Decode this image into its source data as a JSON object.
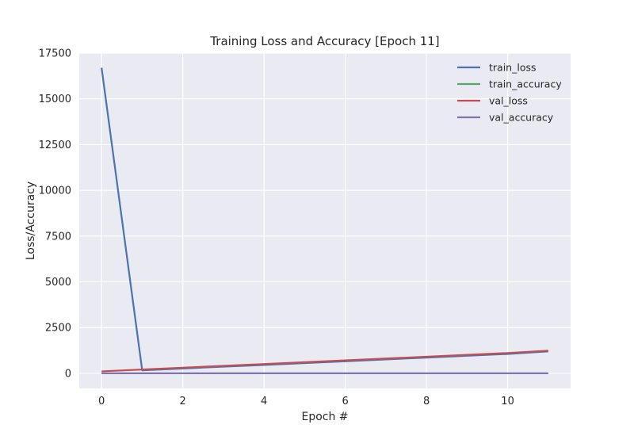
{
  "chart_data": {
    "type": "line",
    "title": "Training Loss and Accuracy [Epoch 11]",
    "xlabel": "Epoch #",
    "ylabel": "Loss/Accuracy",
    "xlim": [
      -0.55,
      11.55
    ],
    "ylim": [
      -825,
      17500
    ],
    "xticks": [
      0,
      2,
      4,
      6,
      8,
      10
    ],
    "yticks": [
      0,
      2500,
      5000,
      7500,
      10000,
      12500,
      15000,
      17500
    ],
    "grid": true,
    "legend": "top-right",
    "x": [
      0,
      1,
      2,
      3,
      4,
      5,
      6,
      7,
      8,
      9,
      10,
      11
    ],
    "series": [
      {
        "name": "train_loss",
        "color": "#4c72b0",
        "values": [
          16700,
          165,
          265,
          365,
          460,
          560,
          660,
          760,
          860,
          960,
          1060,
          1200
        ]
      },
      {
        "name": "train_accuracy",
        "color": "#55a868",
        "values": [
          0.1,
          0.2,
          0.2,
          0.2,
          0.2,
          0.2,
          0.2,
          0.2,
          0.2,
          0.2,
          0.2,
          0.2
        ]
      },
      {
        "name": "val_loss",
        "color": "#c44e52",
        "values": [
          110,
          210,
          310,
          410,
          510,
          610,
          710,
          810,
          910,
          1010,
          1110,
          1240
        ]
      },
      {
        "name": "val_accuracy",
        "color": "#8172b2",
        "values": [
          0.1,
          0.2,
          0.2,
          0.2,
          0.2,
          0.2,
          0.2,
          0.2,
          0.2,
          0.2,
          0.2,
          0.2
        ]
      }
    ]
  }
}
